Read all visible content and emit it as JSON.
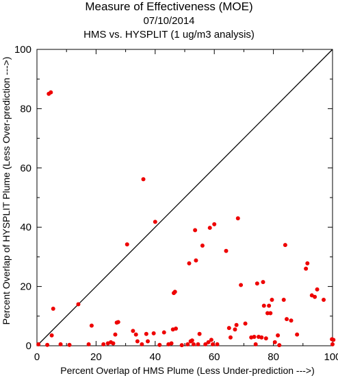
{
  "chart_data": {
    "type": "scatter",
    "title": "Measure of Effectiveness (MOE)",
    "date": "07/10/2014",
    "subtitle": "HMS vs. HYSPLIT  (1 ug/m3 analysis)",
    "xlabel": "Percent Overlap of HMS Plume (Less Under-prediction --->)",
    "ylabel": "Percent Overlap of HYSPLIT Plume (Less Over-prediction --->)",
    "xlim": [
      0,
      100
    ],
    "ylim": [
      0,
      100
    ],
    "xticks": [
      0,
      20,
      40,
      60,
      80,
      100
    ],
    "yticks": [
      0,
      20,
      40,
      60,
      80,
      100
    ],
    "reference_line": "y = x",
    "point_color": "#ee0000",
    "line_color": "#000000",
    "points": [
      [
        0.5,
        0.5
      ],
      [
        3.5,
        0.3
      ],
      [
        4,
        85
      ],
      [
        4.7,
        85.5
      ],
      [
        5,
        3.5
      ],
      [
        5.5,
        12.5
      ],
      [
        8,
        0.5
      ],
      [
        11,
        0.3
      ],
      [
        14,
        14
      ],
      [
        17.5,
        0.5
      ],
      [
        18.5,
        6.8
      ],
      [
        22.5,
        0.5
      ],
      [
        24,
        0.8
      ],
      [
        25,
        1.2
      ],
      [
        25.8,
        0.8
      ],
      [
        26.5,
        3.8
      ],
      [
        27,
        7.8
      ],
      [
        27.5,
        8
      ],
      [
        30.5,
        34.2
      ],
      [
        32.5,
        5
      ],
      [
        33.5,
        3.8
      ],
      [
        34,
        1.5
      ],
      [
        35.5,
        0.5
      ],
      [
        36,
        56.2
      ],
      [
        37,
        4
      ],
      [
        37.5,
        1.5
      ],
      [
        39.5,
        4.2
      ],
      [
        40,
        41.8
      ],
      [
        41.5,
        0.3
      ],
      [
        43,
        4.5
      ],
      [
        44.5,
        0.5
      ],
      [
        45.5,
        0.8
      ],
      [
        46,
        5.5
      ],
      [
        46.3,
        17.8
      ],
      [
        46.7,
        18.2
      ],
      [
        47,
        5.8
      ],
      [
        49,
        0.2
      ],
      [
        51,
        0.5
      ],
      [
        51.5,
        27.8
      ],
      [
        52,
        1.5
      ],
      [
        52.5,
        1.8
      ],
      [
        53,
        0.5
      ],
      [
        53.5,
        39
      ],
      [
        53.8,
        28.8
      ],
      [
        54.5,
        0.5
      ],
      [
        55,
        4
      ],
      [
        56,
        33.8
      ],
      [
        57,
        0.5
      ],
      [
        58,
        1.2
      ],
      [
        58.5,
        39.8
      ],
      [
        59,
        2
      ],
      [
        59.5,
        0.5
      ],
      [
        60,
        41
      ],
      [
        61,
        0.5
      ],
      [
        64,
        32
      ],
      [
        65,
        6
      ],
      [
        65.5,
        2.8
      ],
      [
        67,
        5.5
      ],
      [
        67.5,
        7
      ],
      [
        68,
        43
      ],
      [
        69,
        20.5
      ],
      [
        70.5,
        7.5
      ],
      [
        72.5,
        2.8
      ],
      [
        73.5,
        3
      ],
      [
        74,
        0.5
      ],
      [
        74.5,
        21
      ],
      [
        75,
        3
      ],
      [
        76,
        2.8
      ],
      [
        76.5,
        21.5
      ],
      [
        76.8,
        13.5
      ],
      [
        77.5,
        2.5
      ],
      [
        78,
        11
      ],
      [
        78.5,
        13.5
      ],
      [
        79,
        11
      ],
      [
        79.5,
        15.5
      ],
      [
        80.5,
        1.2
      ],
      [
        81.5,
        3.5
      ],
      [
        82,
        0.2
      ],
      [
        83.5,
        15.5
      ],
      [
        84,
        34
      ],
      [
        84.5,
        9
      ],
      [
        86,
        8.5
      ],
      [
        88,
        3.8
      ],
      [
        91,
        26
      ],
      [
        91.5,
        27.8
      ],
      [
        93,
        17
      ],
      [
        94,
        16.5
      ],
      [
        94.8,
        19
      ],
      [
        97,
        15.5
      ],
      [
        99.8,
        2.2
      ],
      [
        100,
        0.5
      ],
      [
        100.3,
        2
      ]
    ]
  }
}
